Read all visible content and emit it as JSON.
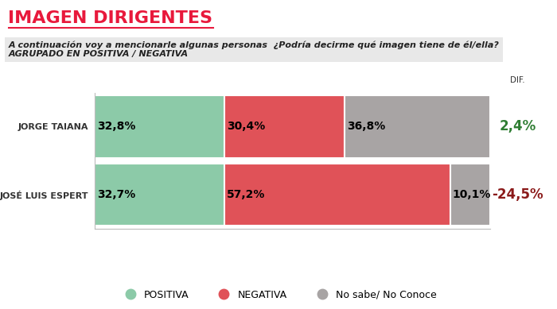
{
  "chart_data": {
    "type": "bar",
    "orientation": "horizontal",
    "stacked": true,
    "data_labels": true,
    "tick_labels": "y",
    "grid": false,
    "legend": "lower center",
    "title": "IMAGEN DIRIGENTES",
    "subtitle": [
      "A continuación voy a mencionarle algunas personas  ¿Podría decirme qué imagen tiene de él/ella?",
      "AGRUPADO EN POSITIVA / NEGATIVA"
    ],
    "categories": [
      "JORGE TAIANA",
      "JOSÉ LUIS ESPERT"
    ],
    "xlim": [
      0,
      100
    ],
    "xticks": [],
    "series": [
      {
        "name": "POSITIVA",
        "color": "#8ccaa8",
        "values": [
          32.8,
          32.7
        ],
        "value_labels": [
          "32,8%",
          "32,7%"
        ]
      },
      {
        "name": "NEGATIVA",
        "color": "#e05258",
        "values": [
          30.4,
          57.2
        ],
        "value_labels": [
          "30,4%",
          "57,2%"
        ]
      },
      {
        "name": "No sabe/ No Conoce",
        "color": "#a8a4a4",
        "values": [
          36.8,
          10.1
        ],
        "value_labels": [
          "36,8%",
          "10,1%"
        ]
      }
    ],
    "differences": {
      "label": "DIF.",
      "values": [
        2.4,
        -24.5
      ],
      "value_labels": [
        "2,4%",
        "-24,5%"
      ]
    }
  }
}
